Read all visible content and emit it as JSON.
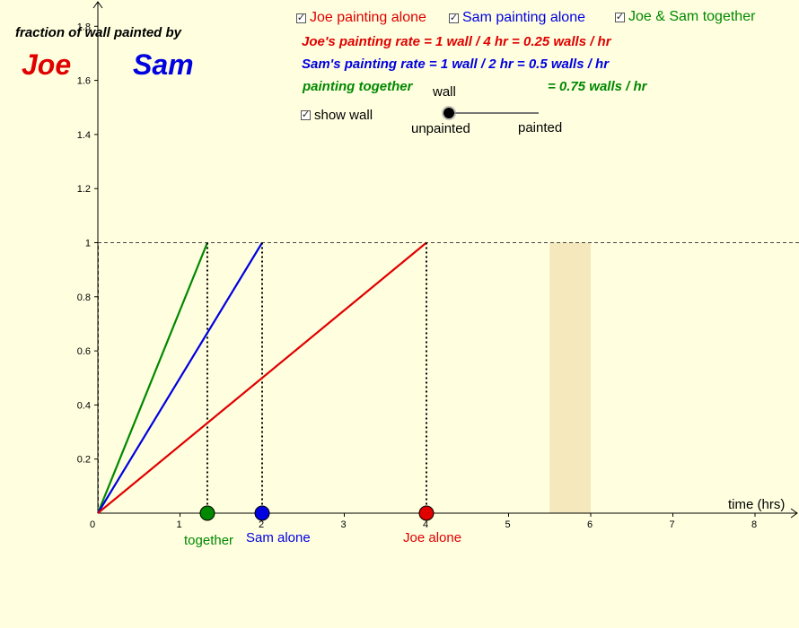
{
  "colors": {
    "joe": "#e00000",
    "sam": "#0000e0",
    "together": "#008800",
    "background": "#ffffe0",
    "wall": "#f4e8bc"
  },
  "header": {
    "ylabel": "fraction of wall painted by",
    "joe_name": "Joe",
    "sam_name": "Sam"
  },
  "checkboxes": [
    {
      "label": "Joe painting alone",
      "checked": true
    },
    {
      "label": "Sam painting alone",
      "checked": true
    },
    {
      "label": "Joe & Sam together",
      "checked": true
    }
  ],
  "rates": {
    "joe": "Joe's painting rate = 1 wall / 4 hr = 0.25 walls / hr",
    "sam": "Sam's painting rate = 1 wall / 2 hr = 0.5 walls / hr",
    "together_left": "painting together",
    "together_right": "= 0.75 walls / hr"
  },
  "wall_control": {
    "show_wall_label": "show wall",
    "show_wall_checked": true,
    "slider_title": "wall",
    "left_label": "unpainted",
    "right_label": "painted",
    "value": 0
  },
  "point_labels": {
    "together": "together",
    "sam": "Sam alone",
    "joe": "Joe alone"
  },
  "chart_data": {
    "type": "line",
    "xlabel": "time (hrs)",
    "ylabel": "",
    "xlim": [
      0,
      8.5
    ],
    "ylim": [
      0,
      1.85
    ],
    "x_ticks": [
      0,
      1,
      2,
      3,
      4,
      5,
      6,
      7,
      8
    ],
    "y_ticks": [
      0.2,
      0.4,
      0.6,
      0.8,
      1,
      1.2,
      1.4,
      1.6,
      1.8
    ],
    "reference_line_y": 1,
    "wall_x_range": [
      5.5,
      6
    ],
    "series": [
      {
        "key": "together",
        "x": [
          0,
          1.333
        ],
        "y": [
          0,
          1
        ]
      },
      {
        "key": "sam",
        "x": [
          0,
          2
        ],
        "y": [
          0,
          1
        ]
      },
      {
        "key": "joe",
        "x": [
          0,
          4
        ],
        "y": [
          0,
          1
        ]
      }
    ],
    "finish_times": {
      "together": 1.333,
      "sam": 2,
      "joe": 4
    }
  }
}
